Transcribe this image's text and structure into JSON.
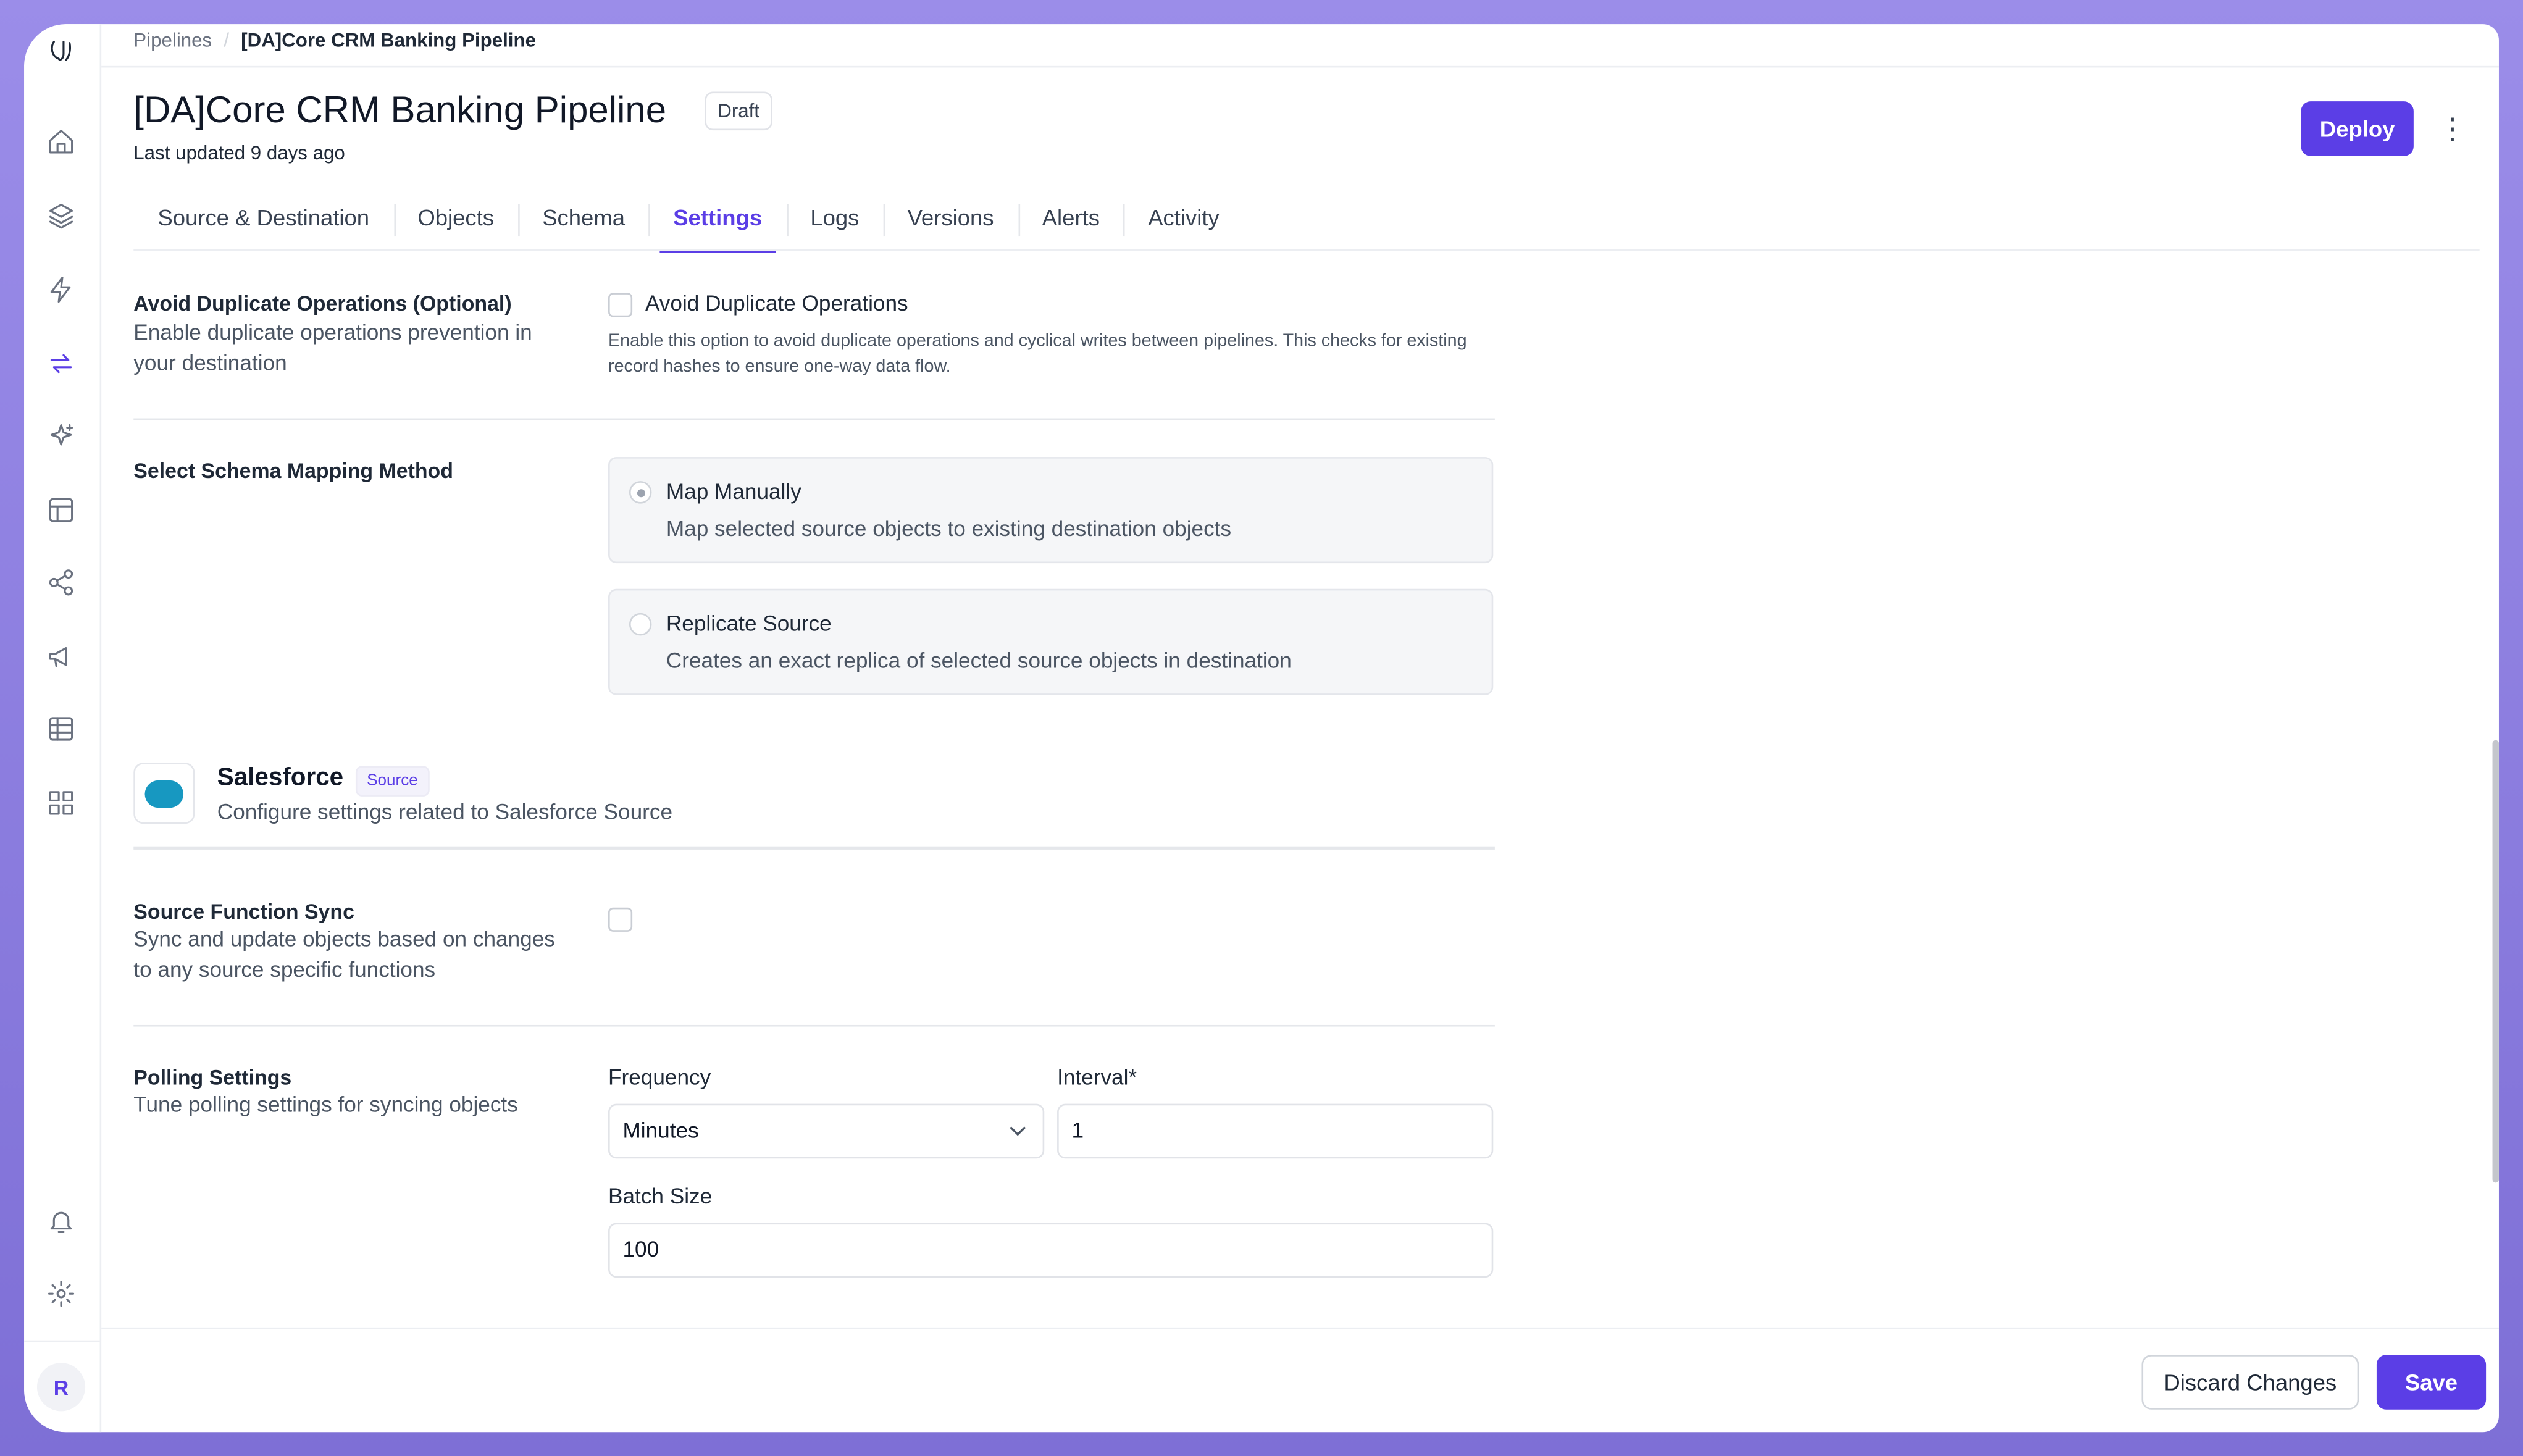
{
  "colors": {
    "accent": "#5b3ee6",
    "frame": "#9b8de9"
  },
  "sidebar": {
    "items": [
      {
        "icon": "home-icon"
      },
      {
        "icon": "layers-icon"
      },
      {
        "icon": "zap-icon"
      },
      {
        "icon": "pipeline-arrows-icon",
        "active": true
      },
      {
        "icon": "sparkles-icon"
      },
      {
        "icon": "layout-icon"
      },
      {
        "icon": "share-icon"
      },
      {
        "icon": "megaphone-icon"
      },
      {
        "icon": "table-icon"
      },
      {
        "icon": "grid-icon"
      }
    ],
    "bottom": [
      {
        "icon": "bell-icon"
      },
      {
        "icon": "gear-icon"
      }
    ],
    "avatar": "R"
  },
  "breadcrumb": {
    "root": "Pipelines",
    "separator": "/",
    "current": "[DA]Core CRM Banking Pipeline"
  },
  "header": {
    "title": "[DA]Core CRM Banking Pipeline",
    "status": "Draft",
    "updated": "Last updated 9 days ago",
    "deploy": "Deploy",
    "more": "⋮"
  },
  "tabs": [
    {
      "label": "Source & Destination"
    },
    {
      "label": "Objects"
    },
    {
      "label": "Schema"
    },
    {
      "label": "Settings",
      "active": true
    },
    {
      "label": "Logs"
    },
    {
      "label": "Versions"
    },
    {
      "label": "Alerts"
    },
    {
      "label": "Activity"
    }
  ],
  "settings": {
    "dup": {
      "title": "Avoid Duplicate Operations (Optional)",
      "desc": "Enable duplicate operations prevention in your destination",
      "checkbox": "Avoid Duplicate Operations",
      "checked": false,
      "help": "Enable this option to avoid duplicate operations and cyclical writes between pipelines. This checks for existing record hashes to ensure one-way data flow."
    },
    "mapping": {
      "title": "Select Schema Mapping Method",
      "options": [
        {
          "label": "Map Manually",
          "desc": "Map selected source objects to existing destination objects",
          "selected": true
        },
        {
          "label": "Replicate Source",
          "desc": "Creates an exact replica of selected source objects in destination",
          "selected": false
        }
      ]
    },
    "source": {
      "name": "Salesforce",
      "badge": "Source",
      "desc": "Configure settings related to Salesforce Source",
      "logo_text": "salesforce"
    },
    "function_sync": {
      "title": "Source Function Sync",
      "desc": "Sync and update objects based on changes to any source specific functions",
      "checked": false
    },
    "polling": {
      "title": "Polling Settings",
      "desc": "Tune polling settings for syncing objects",
      "frequency_label": "Frequency",
      "frequency": "Minutes",
      "interval_label": "Interval*",
      "interval": "1",
      "batch_label": "Batch Size",
      "batch": "100"
    }
  },
  "footer": {
    "discard": "Discard Changes",
    "save": "Save"
  }
}
